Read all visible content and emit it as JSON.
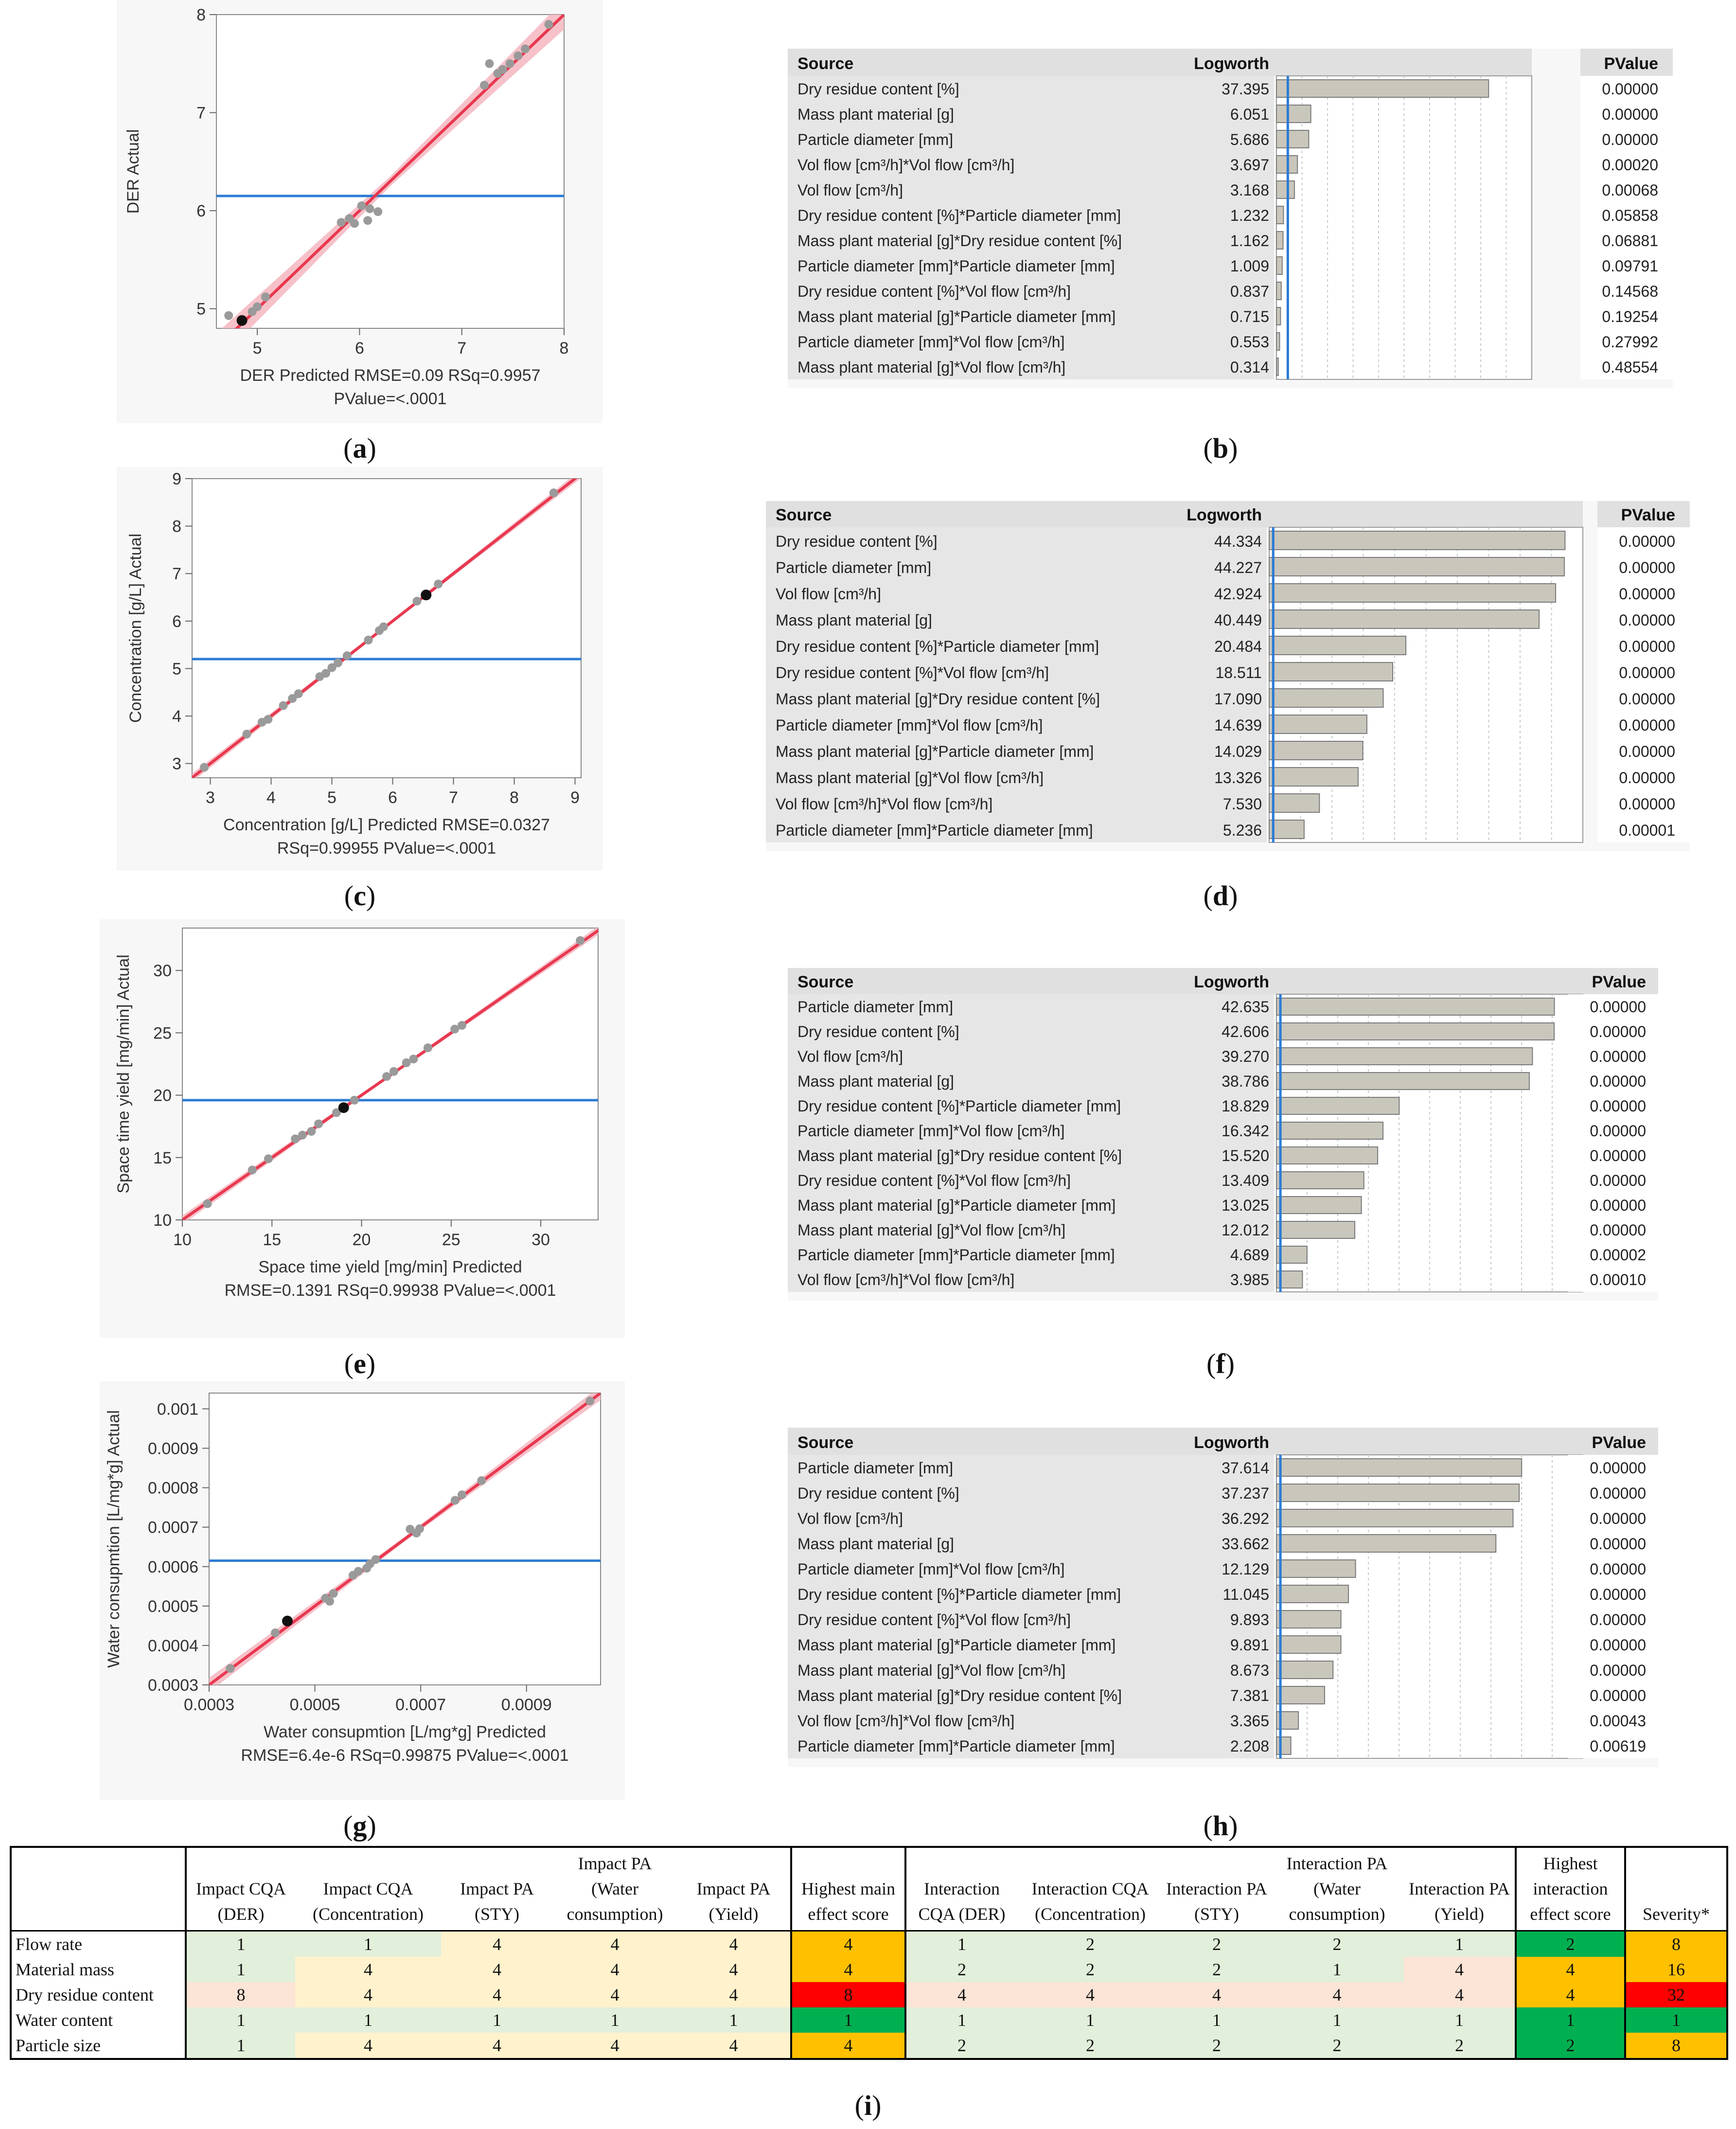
{
  "colors": {
    "fit": "#e8384f",
    "band": "#f4b6bf",
    "mean": "#2b7bd4",
    "point": "#9a9a9a",
    "highlight": "#111111",
    "bar": "#c9c6bc",
    "barEdge": "#7a7a7a",
    "panelBg": "#f7f7f7",
    "header": "#e0e0e0"
  },
  "chart_data": [
    {
      "id": "a",
      "type": "scatter",
      "title": "",
      "xlabel": "DER Predicted RMSE=0.09 RSq=0.9957",
      "xlabel2": "PValue=<.0001",
      "ylabel": "DER Actual",
      "xlim": [
        4.6,
        8.0
      ],
      "ylim": [
        4.8,
        8.0
      ],
      "xticks": [
        5,
        6,
        7,
        8
      ],
      "yticks": [
        5,
        6,
        7,
        8
      ],
      "mean": 6.15,
      "band": 0.05,
      "highlight": [
        4.85,
        4.88
      ],
      "points": [
        [
          4.72,
          4.93
        ],
        [
          4.85,
          4.88
        ],
        [
          4.95,
          4.97
        ],
        [
          5.0,
          5.02
        ],
        [
          5.08,
          5.12
        ],
        [
          5.82,
          5.88
        ],
        [
          5.9,
          5.92
        ],
        [
          5.95,
          5.87
        ],
        [
          6.02,
          6.05
        ],
        [
          6.08,
          5.9
        ],
        [
          6.1,
          6.02
        ],
        [
          6.18,
          5.99
        ],
        [
          7.22,
          7.28
        ],
        [
          7.27,
          7.5
        ],
        [
          7.35,
          7.4
        ],
        [
          7.4,
          7.44
        ],
        [
          7.47,
          7.5
        ],
        [
          7.55,
          7.58
        ],
        [
          7.62,
          7.65
        ],
        [
          7.85,
          7.9
        ]
      ]
    },
    {
      "id": "c",
      "type": "scatter",
      "xlabel": "Concentration [g/L] Predicted RMSE=0.0327",
      "xlabel2": "RSq=0.99955 PValue=<.0001",
      "ylabel": "Concentration [g/L] Actual",
      "xlim": [
        2.7,
        9.1
      ],
      "ylim": [
        2.7,
        9.0
      ],
      "xticks": [
        3,
        4,
        5,
        6,
        7,
        8,
        9
      ],
      "yticks": [
        3,
        4,
        5,
        6,
        7,
        8,
        9
      ],
      "mean": 5.2,
      "band": 0.03,
      "highlight": [
        6.55,
        6.55
      ],
      "points": [
        [
          2.9,
          2.92
        ],
        [
          3.6,
          3.62
        ],
        [
          3.85,
          3.87
        ],
        [
          3.95,
          3.93
        ],
        [
          4.2,
          4.22
        ],
        [
          4.35,
          4.37
        ],
        [
          4.45,
          4.47
        ],
        [
          4.8,
          4.83
        ],
        [
          4.9,
          4.9
        ],
        [
          5.0,
          5.02
        ],
        [
          5.1,
          5.12
        ],
        [
          5.25,
          5.27
        ],
        [
          5.6,
          5.6
        ],
        [
          5.78,
          5.8
        ],
        [
          5.85,
          5.88
        ],
        [
          6.4,
          6.42
        ],
        [
          6.55,
          6.55
        ],
        [
          6.75,
          6.78
        ],
        [
          8.65,
          8.7
        ]
      ]
    },
    {
      "id": "e",
      "type": "scatter",
      "xlabel": "Space time yield [mg/min] Predicted",
      "xlabel2": "RMSE=0.1391 RSq=0.99938 PValue=<.0001",
      "ylabel": "Space time yield [mg/min] Actual",
      "xlim": [
        10,
        33.2
      ],
      "ylim": [
        10,
        33.4
      ],
      "xticks": [
        10,
        15,
        20,
        25,
        30
      ],
      "yticks": [
        10,
        15,
        20,
        25,
        30
      ],
      "mean": 19.6,
      "band": 0.12,
      "highlight": [
        19.0,
        19.0
      ],
      "points": [
        [
          11.4,
          11.3
        ],
        [
          13.9,
          14.0
        ],
        [
          14.8,
          14.9
        ],
        [
          16.3,
          16.5
        ],
        [
          16.7,
          16.8
        ],
        [
          17.2,
          17.1
        ],
        [
          17.6,
          17.7
        ],
        [
          18.6,
          18.6
        ],
        [
          19.0,
          19.0
        ],
        [
          19.6,
          19.6
        ],
        [
          21.4,
          21.5
        ],
        [
          21.8,
          21.9
        ],
        [
          22.5,
          22.6
        ],
        [
          22.9,
          22.9
        ],
        [
          23.7,
          23.8
        ],
        [
          25.2,
          25.3
        ],
        [
          25.6,
          25.6
        ],
        [
          32.2,
          32.4
        ]
      ]
    },
    {
      "id": "g",
      "type": "scatter",
      "xlabel": "Water consupmtion [L/mg*g] Predicted",
      "xlabel2": "RMSE=6.4e-6 RSq=0.99875 PValue=<.0001",
      "ylabel": "Water consupmtion [L/mg*g] Actual",
      "xlim": [
        0.0003,
        0.00104
      ],
      "ylim": [
        0.0003,
        0.00104
      ],
      "xticks": [
        0.0003,
        0.0005,
        0.0007,
        0.0009
      ],
      "yticks": [
        0.0003,
        0.0004,
        0.0005,
        0.0006,
        0.0007,
        0.0008,
        0.0009,
        0.001
      ],
      "mean": 0.000615,
      "band": 6e-06,
      "highlight": [
        0.000448,
        0.000462
      ],
      "points": [
        [
          0.00034,
          0.000342
        ],
        [
          0.000425,
          0.000432
        ],
        [
          0.000448,
          0.000462
        ],
        [
          0.00052,
          0.00052
        ],
        [
          0.000528,
          0.000512
        ],
        [
          0.000535,
          0.000532
        ],
        [
          0.000572,
          0.000578
        ],
        [
          0.000582,
          0.000588
        ],
        [
          0.000598,
          0.000596
        ],
        [
          0.000604,
          0.000607
        ],
        [
          0.000615,
          0.000618
        ],
        [
          0.00068,
          0.000695
        ],
        [
          0.000692,
          0.000685
        ],
        [
          0.000698,
          0.000696
        ],
        [
          0.000765,
          0.000768
        ],
        [
          0.000778,
          0.000782
        ],
        [
          0.000815,
          0.000818
        ],
        [
          0.00102,
          0.00102
        ]
      ]
    },
    {
      "id": "b",
      "type": "table",
      "header": [
        "Source",
        "Logworth",
        "PValue"
      ],
      "max": 45,
      "refline": 2,
      "rows": [
        [
          "Dry residue content [%]",
          "37.395",
          "0.00000"
        ],
        [
          "Mass plant material [g]",
          "6.051",
          "0.00000"
        ],
        [
          "Particle diameter [mm]",
          "5.686",
          "0.00000"
        ],
        [
          "Vol flow [cm³/h]*Vol flow [cm³/h]",
          "3.697",
          "0.00020"
        ],
        [
          "Vol flow [cm³/h]",
          "3.168",
          "0.00068"
        ],
        [
          "Dry residue content [%]*Particle diameter [mm]",
          "1.232",
          "0.05858"
        ],
        [
          "Mass plant material [g]*Dry residue content [%]",
          "1.162",
          "0.06881"
        ],
        [
          "Particle diameter [mm]*Particle diameter [mm]",
          "1.009",
          "0.09791"
        ],
        [
          "Dry residue content [%]*Vol flow [cm³/h]",
          "0.837",
          "0.14568"
        ],
        [
          "Mass plant material [g]*Particle diameter [mm]",
          "0.715",
          "0.19254"
        ],
        [
          "Particle diameter [mm]*Vol flow [cm³/h]",
          "0.553",
          "0.27992"
        ],
        [
          "Mass plant material [g]*Vol flow [cm³/h]",
          "0.314",
          "0.48554"
        ]
      ]
    },
    {
      "id": "d",
      "type": "table",
      "header": [
        "Source",
        "Logworth",
        "PValue"
      ],
      "max": 47,
      "refline": 0.6,
      "rows": [
        [
          "Dry residue content [%]",
          "44.334",
          "0.00000"
        ],
        [
          "Particle diameter [mm]",
          "44.227",
          "0.00000"
        ],
        [
          "Vol flow [cm³/h]",
          "42.924",
          "0.00000"
        ],
        [
          "Mass plant material [g]",
          "40.449",
          "0.00000"
        ],
        [
          "Dry residue content [%]*Particle diameter [mm]",
          "20.484",
          "0.00000"
        ],
        [
          "Dry residue content [%]*Vol flow [cm³/h]",
          "18.511",
          "0.00000"
        ],
        [
          "Mass plant material [g]*Dry residue content [%]",
          "17.090",
          "0.00000"
        ],
        [
          "Particle diameter [mm]*Vol flow [cm³/h]",
          "14.639",
          "0.00000"
        ],
        [
          "Mass plant material [g]*Particle diameter [mm]",
          "14.029",
          "0.00000"
        ],
        [
          "Mass plant material [g]*Vol flow [cm³/h]",
          "13.326",
          "0.00000"
        ],
        [
          "Vol flow [cm³/h]*Vol flow [cm³/h]",
          "7.530",
          "0.00000"
        ],
        [
          "Particle diameter [mm]*Particle diameter [mm]",
          "5.236",
          "0.00001"
        ]
      ]
    },
    {
      "id": "f",
      "type": "table",
      "header": [
        "Source",
        "Logworth",
        "PValue"
      ],
      "max": 47,
      "refline": 0.6,
      "rows": [
        [
          "Particle diameter [mm]",
          "42.635",
          "0.00000"
        ],
        [
          "Dry residue content [%]",
          "42.606",
          "0.00000"
        ],
        [
          "Vol flow [cm³/h]",
          "39.270",
          "0.00000"
        ],
        [
          "Mass plant material [g]",
          "38.786",
          "0.00000"
        ],
        [
          "Dry residue content [%]*Particle diameter [mm]",
          "18.829",
          "0.00000"
        ],
        [
          "Particle diameter [mm]*Vol flow [cm³/h]",
          "16.342",
          "0.00000"
        ],
        [
          "Mass plant material [g]*Dry residue content [%]",
          "15.520",
          "0.00000"
        ],
        [
          "Dry residue content [%]*Vol flow [cm³/h]",
          "13.409",
          "0.00000"
        ],
        [
          "Mass plant material [g]*Particle diameter [mm]",
          "13.025",
          "0.00000"
        ],
        [
          "Mass plant material [g]*Vol flow [cm³/h]",
          "12.012",
          "0.00000"
        ],
        [
          "Particle diameter [mm]*Particle diameter [mm]",
          "4.689",
          "0.00002"
        ],
        [
          "Vol flow [cm³/h]*Vol flow [cm³/h]",
          "3.985",
          "0.00010"
        ]
      ]
    },
    {
      "id": "h",
      "type": "table",
      "header": [
        "Source",
        "Logworth",
        "PValue"
      ],
      "max": 47,
      "refline": 0.6,
      "rows": [
        [
          "Particle diameter [mm]",
          "37.614",
          "0.00000"
        ],
        [
          "Dry residue content [%]",
          "37.237",
          "0.00000"
        ],
        [
          "Vol flow [cm³/h]",
          "36.292",
          "0.00000"
        ],
        [
          "Mass plant material [g]",
          "33.662",
          "0.00000"
        ],
        [
          "Particle diameter [mm]*Vol flow [cm³/h]",
          "12.129",
          "0.00000"
        ],
        [
          "Dry residue content [%]*Particle diameter [mm]",
          "11.045",
          "0.00000"
        ],
        [
          "Dry residue content [%]*Vol flow [cm³/h]",
          "9.893",
          "0.00000"
        ],
        [
          "Mass plant material [g]*Particle diameter [mm]",
          "9.891",
          "0.00000"
        ],
        [
          "Mass plant material [g]*Vol flow [cm³/h]",
          "8.673",
          "0.00000"
        ],
        [
          "Mass plant material [g]*Dry residue content [%]",
          "7.381",
          "0.00000"
        ],
        [
          "Vol flow [cm³/h]*Vol flow [cm³/h]",
          "3.365",
          "0.00043"
        ],
        [
          "Particle diameter [mm]*Particle diameter [mm]",
          "2.208",
          "0.00619"
        ]
      ]
    },
    {
      "id": "i",
      "type": "table",
      "header": [
        "",
        "Impact CQA (DER)",
        "Impact CQA (Concentration)",
        "Impact PA (STY)",
        "Impact PA (Water consumption)",
        "Impact PA (Yield)",
        "Highest main effect score",
        "Interaction CQA (DER)",
        "Interaction CQA (Concentration)",
        "Interaction PA (STY)",
        "Interaction PA (Water consumption)",
        "Interaction PA (Yield)",
        "Highest interaction effect score",
        "Severity*"
      ],
      "rows": [
        [
          "Flow rate",
          "1",
          "1",
          "4",
          "4",
          "4",
          "4",
          "1",
          "2",
          "2",
          "2",
          "1",
          "2",
          "8"
        ],
        [
          "Material mass",
          "1",
          "4",
          "4",
          "4",
          "4",
          "4",
          "2",
          "2",
          "2",
          "1",
          "4",
          "4",
          "16"
        ],
        [
          "Dry residue content",
          "8",
          "4",
          "4",
          "4",
          "4",
          "8",
          "4",
          "4",
          "4",
          "4",
          "4",
          "4",
          "32"
        ],
        [
          "Water content",
          "1",
          "1",
          "1",
          "1",
          "1",
          "1",
          "1",
          "1",
          "1",
          "1",
          "1",
          "1",
          "1"
        ],
        [
          "Particle size",
          "1",
          "4",
          "4",
          "4",
          "4",
          "4",
          "2",
          "2",
          "2",
          "2",
          "2",
          "2",
          "8"
        ]
      ]
    }
  ],
  "labels": {
    "a": "a",
    "b": "b",
    "c": "c",
    "d": "d",
    "e": "e",
    "f": "f",
    "g": "g",
    "h": "h",
    "i": "i"
  }
}
